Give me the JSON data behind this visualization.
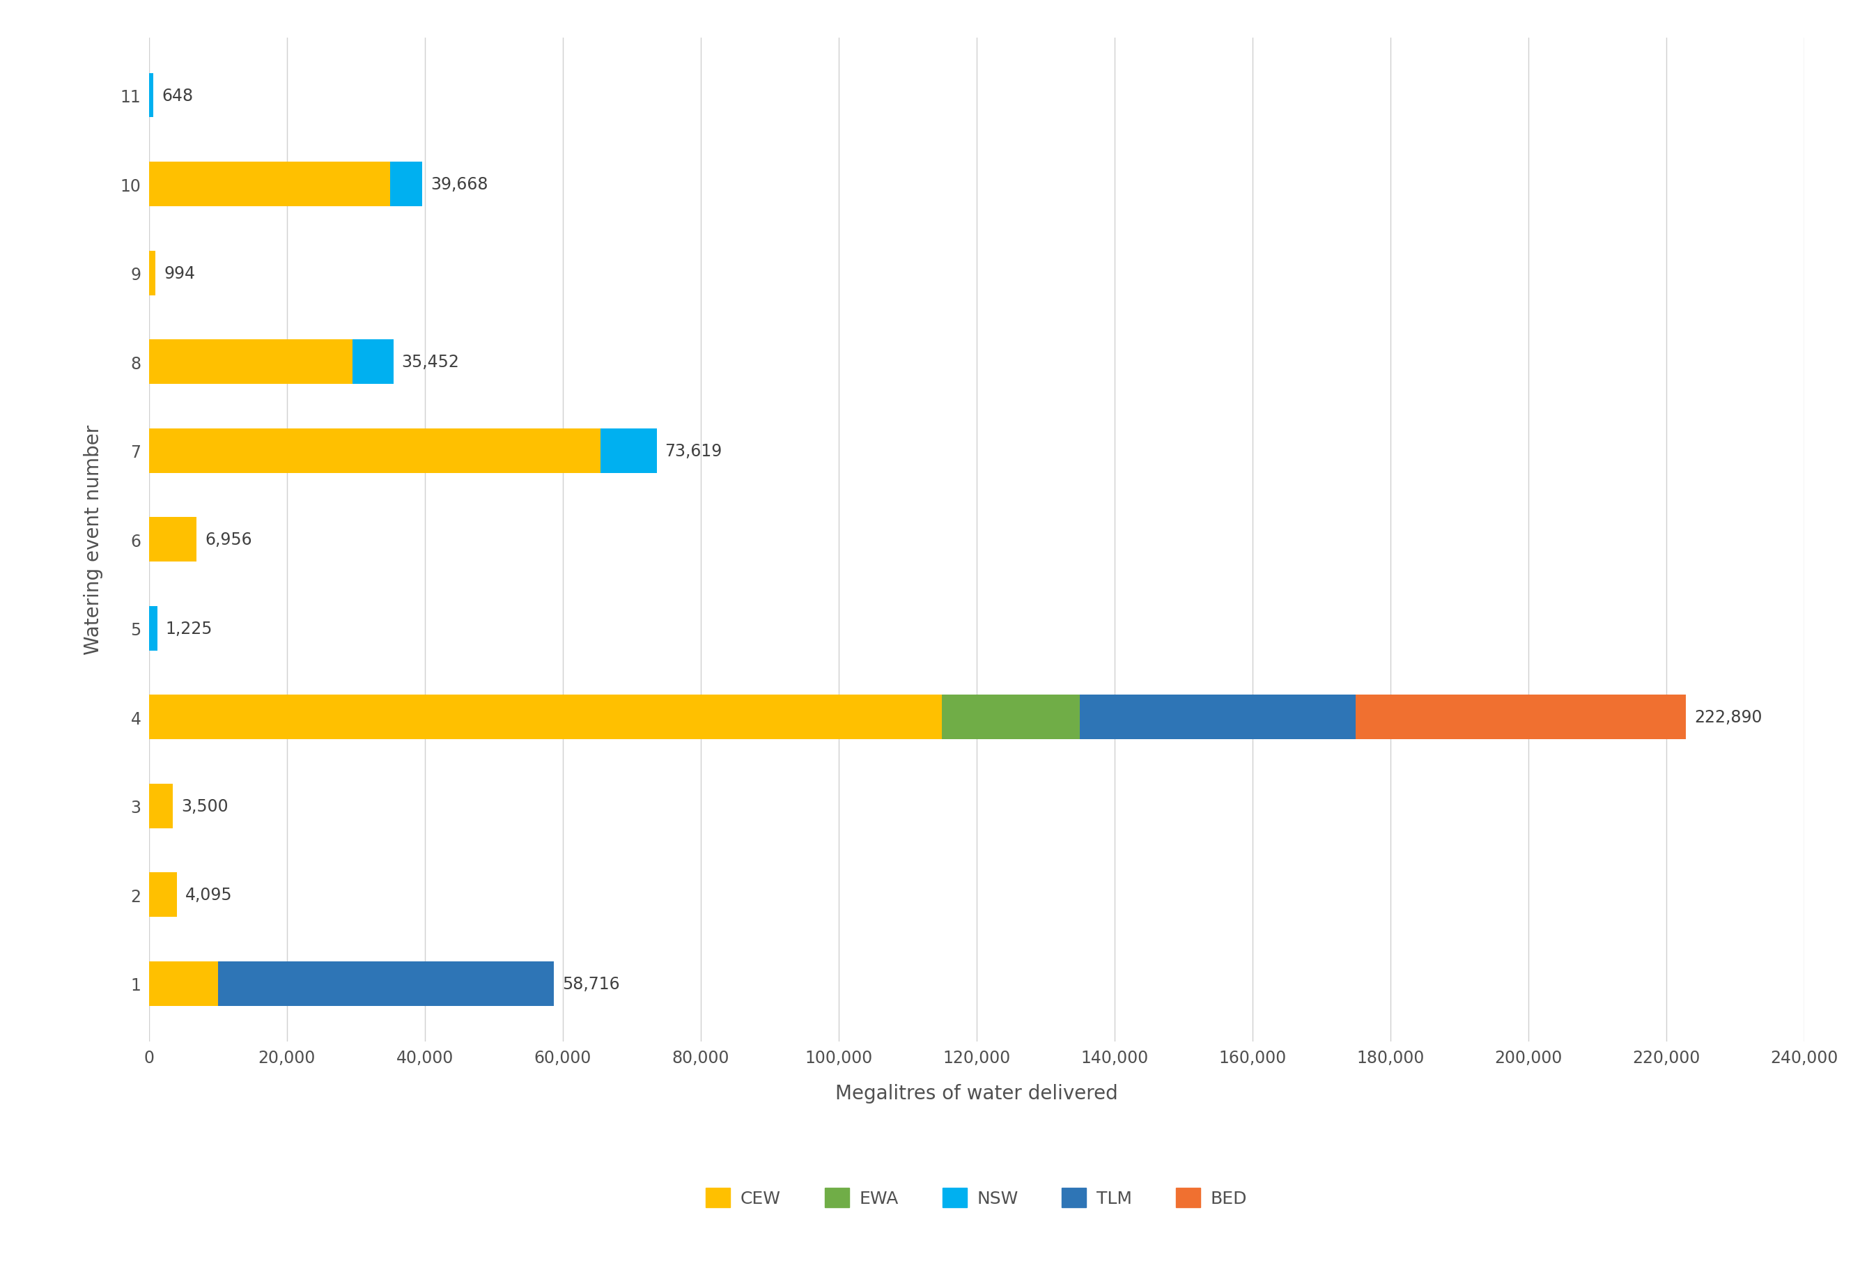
{
  "events": [
    1,
    2,
    3,
    4,
    5,
    6,
    7,
    8,
    9,
    10,
    11
  ],
  "segments": {
    "CEW": {
      "color": "#FFC000",
      "values": [
        10000,
        4095,
        3500,
        115000,
        0,
        6956,
        65500,
        29500,
        994,
        35000,
        0
      ]
    },
    "EWA": {
      "color": "#70AD47",
      "values": [
        0,
        0,
        0,
        20000,
        0,
        0,
        0,
        0,
        0,
        0,
        0
      ]
    },
    "NSW": {
      "color": "#00B0F0",
      "values": [
        0,
        0,
        0,
        0,
        1225,
        0,
        8119,
        5952,
        0,
        4668,
        648
      ]
    },
    "TLM": {
      "color": "#2E75B6",
      "values": [
        48716,
        0,
        0,
        40000,
        0,
        0,
        0,
        0,
        0,
        0,
        0
      ]
    },
    "BED": {
      "color": "#F07030",
      "values": [
        0,
        0,
        0,
        47890,
        0,
        0,
        0,
        0,
        0,
        0,
        0
      ]
    }
  },
  "totals": [
    58716,
    4095,
    3500,
    222890,
    1225,
    6956,
    73619,
    35452,
    994,
    39668,
    648
  ],
  "xlabel": "Megalitres of water delivered",
  "ylabel": "Watering event number",
  "xlim": [
    0,
    240000
  ],
  "xticks": [
    0,
    20000,
    40000,
    60000,
    80000,
    100000,
    120000,
    140000,
    160000,
    180000,
    200000,
    220000,
    240000
  ],
  "xtick_labels": [
    "0",
    "20,000",
    "40,000",
    "60,000",
    "80,000",
    "100,000",
    "120,000",
    "140,000",
    "160,000",
    "180,000",
    "200,000",
    "220,000",
    "240,000"
  ],
  "background_color": "#FFFFFF",
  "grid_color": "#D0D0D0",
  "label_fontsize": 20,
  "tick_fontsize": 17,
  "annotation_fontsize": 17,
  "legend_fontsize": 18,
  "bar_height": 0.5
}
